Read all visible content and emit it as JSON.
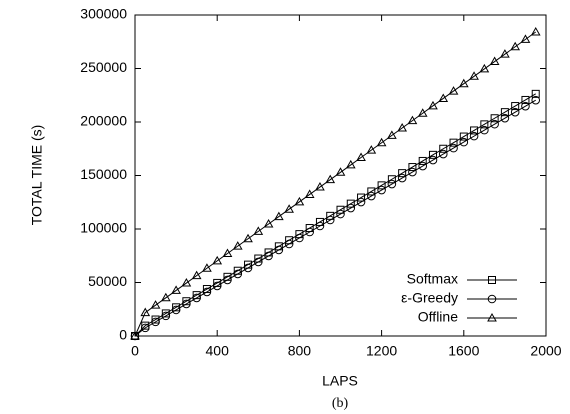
{
  "chart_data": {
    "type": "line",
    "x_label": "LAPS",
    "y_label": "TOTAL TIME (s)",
    "caption": "(b)",
    "x": [
      0,
      50,
      100,
      150,
      200,
      250,
      300,
      350,
      400,
      450,
      500,
      550,
      600,
      650,
      700,
      750,
      800,
      850,
      900,
      950,
      1000,
      1050,
      1100,
      1150,
      1200,
      1250,
      1300,
      1350,
      1400,
      1450,
      1500,
      1550,
      1600,
      1650,
      1700,
      1750,
      1800,
      1850,
      1900,
      1950
    ],
    "series": [
      {
        "name": "Softmax",
        "color": "#000000",
        "marker": "square",
        "values": [
          0,
          9700,
          15400,
          21100,
          26800,
          32500,
          38200,
          43900,
          49600,
          55300,
          61000,
          66700,
          72400,
          78100,
          83800,
          89500,
          95200,
          100900,
          106600,
          112300,
          118000,
          123700,
          129400,
          135100,
          140800,
          146500,
          152200,
          157900,
          163600,
          169300,
          175000,
          180700,
          186400,
          192100,
          197800,
          203500,
          209200,
          214900,
          220600,
          226300
        ]
      },
      {
        "name": "ε-Greedy",
        "color": "#000000",
        "marker": "circle",
        "values": [
          0,
          7600,
          13200,
          18800,
          24400,
          30000,
          35600,
          41200,
          46800,
          52400,
          58000,
          63600,
          69200,
          74800,
          80400,
          86000,
          91600,
          97200,
          102800,
          108400,
          114000,
          119600,
          125200,
          130800,
          136400,
          142000,
          147600,
          153200,
          158800,
          164400,
          170000,
          175600,
          181200,
          186800,
          192400,
          198000,
          203600,
          209200,
          214800,
          220400
        ]
      },
      {
        "name": "Offline",
        "color": "#000000",
        "marker": "triangle",
        "values": [
          0,
          21900,
          28800,
          35700,
          42600,
          49500,
          56400,
          63300,
          70200,
          77100,
          84000,
          90900,
          97800,
          104700,
          111600,
          118500,
          125400,
          132300,
          139200,
          146100,
          153000,
          159900,
          166800,
          173700,
          180600,
          187500,
          194400,
          201300,
          208200,
          215100,
          222000,
          228900,
          235800,
          242700,
          249600,
          256500,
          263400,
          270300,
          277200,
          284100
        ]
      }
    ],
    "xlim": [
      0,
      2000
    ],
    "xticks": [
      0,
      400,
      800,
      1200,
      1600,
      2000
    ],
    "ylim": [
      0,
      300000
    ],
    "yticks": [
      0,
      50000,
      100000,
      150000,
      200000,
      250000,
      300000
    ],
    "legend": "lower right",
    "grid": false
  }
}
